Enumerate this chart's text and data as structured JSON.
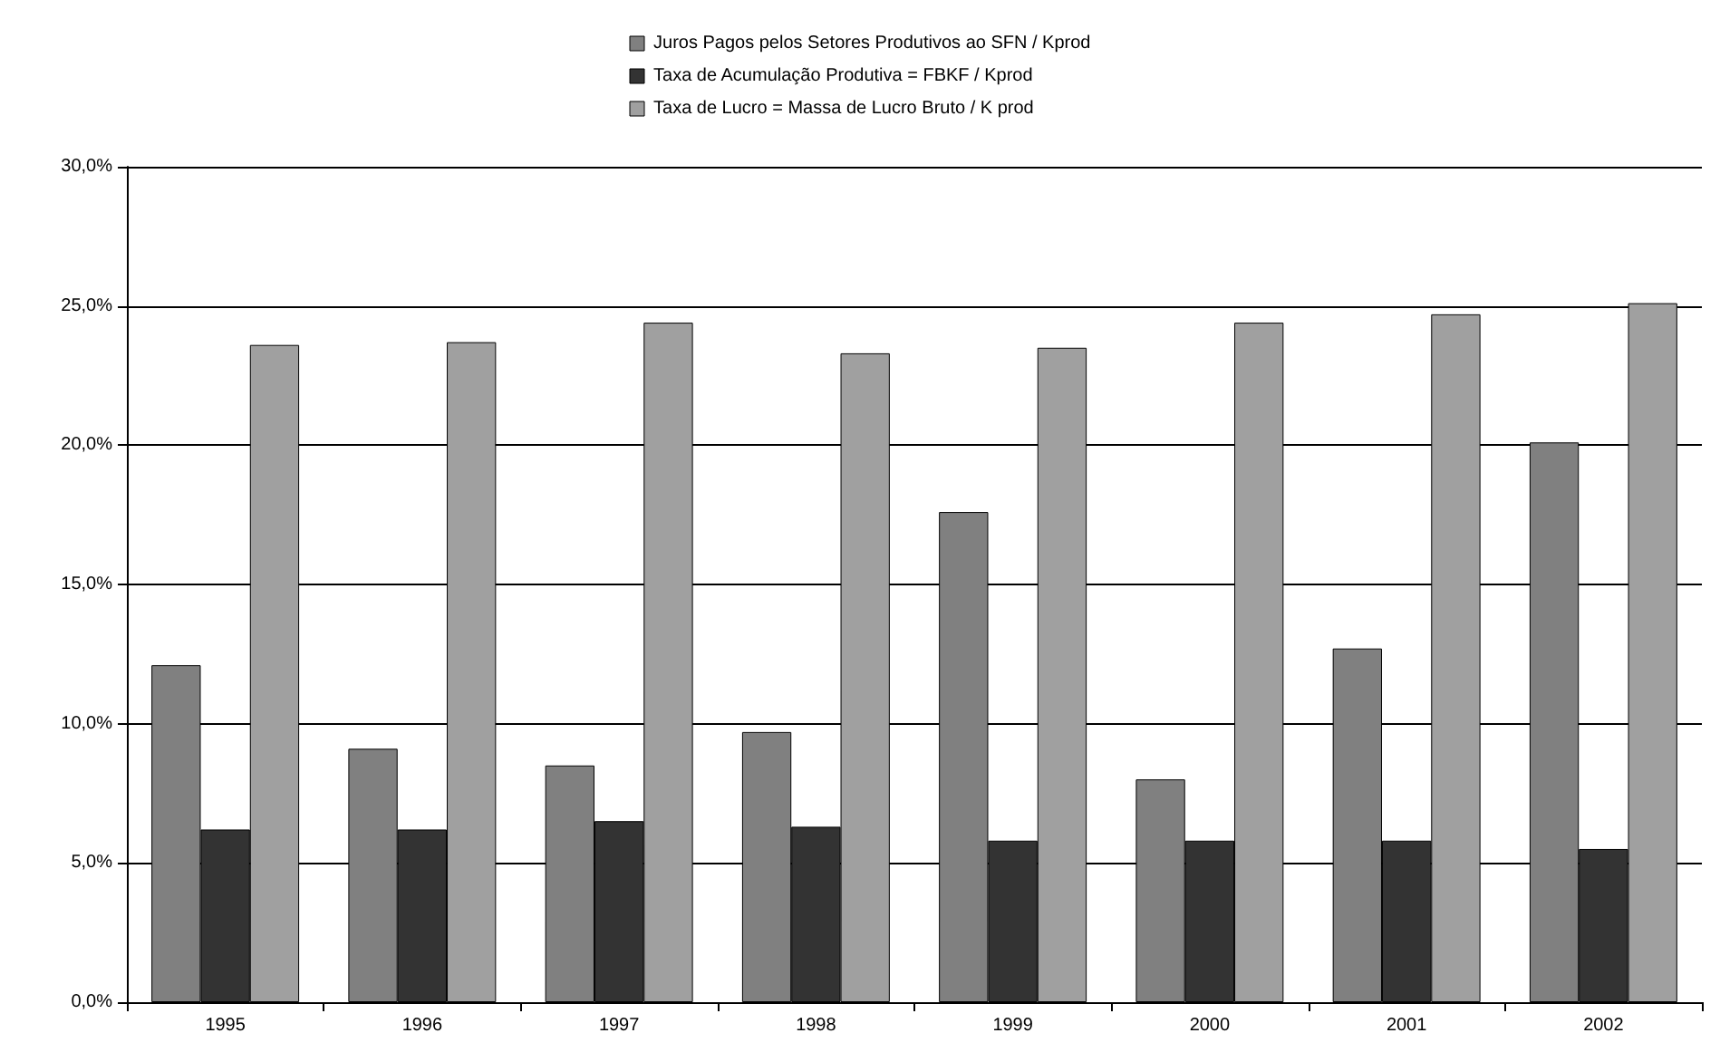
{
  "chart_data": {
    "type": "bar",
    "categories": [
      "1995",
      "1996",
      "1997",
      "1998",
      "1999",
      "2000",
      "2001",
      "2002"
    ],
    "series": [
      {
        "name": "Juros Pagos pelos Setores Produtivos ao SFN / Kprod",
        "color": "#808080",
        "values": [
          12.1,
          9.1,
          8.5,
          9.7,
          17.6,
          8.0,
          12.7,
          20.1
        ]
      },
      {
        "name": "Taxa de Acumulação Produtiva = FBKF / Kprod",
        "color": "#333333",
        "values": [
          6.2,
          6.2,
          6.5,
          6.3,
          5.8,
          5.8,
          5.8,
          5.5
        ]
      },
      {
        "name": "Taxa de Lucro = Massa de Lucro Bruto / K prod",
        "color": "#a0a0a0",
        "values": [
          23.6,
          23.7,
          24.4,
          23.3,
          23.5,
          24.4,
          24.7,
          25.1
        ]
      }
    ],
    "ylim": [
      0,
      30
    ],
    "yticks": [
      {
        "value": 0,
        "label": "0,0%"
      },
      {
        "value": 5,
        "label": "5,0%"
      },
      {
        "value": 10,
        "label": "10,0%"
      },
      {
        "value": 15,
        "label": "15,0%"
      },
      {
        "value": 20,
        "label": "20,0%"
      },
      {
        "value": 25,
        "label": "25,0%"
      },
      {
        "value": 30,
        "label": "30,0%"
      }
    ],
    "grid": "y",
    "legend": "top"
  }
}
